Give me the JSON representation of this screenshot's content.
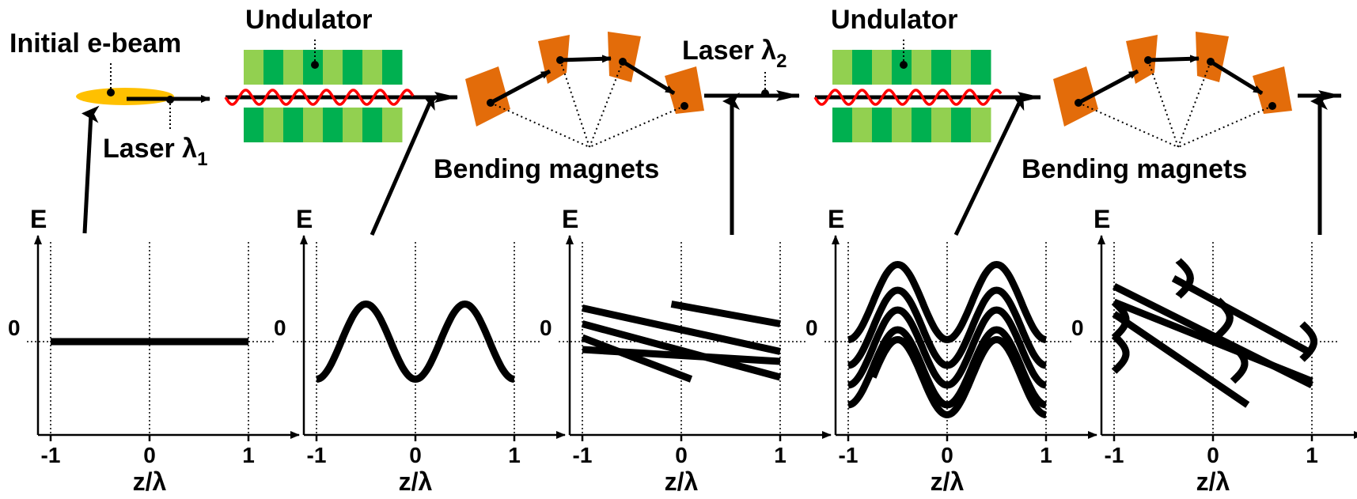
{
  "labels": {
    "initial_ebeam": "Initial e-beam",
    "undulator_1": "Undulator",
    "undulator_2": "Undulator",
    "laser_1": "Laser λ",
    "laser_1_sub": "1",
    "laser_2": "Laser λ",
    "laser_2_sub": "2",
    "bending_magnets_1": "Bending magnets",
    "bending_magnets_2": "Bending magnets"
  },
  "phase_plots": [
    {
      "id": "plot-1",
      "ylabel": "E",
      "xlabel": "z/λ",
      "zero_label": "0",
      "x_ticks": [
        "-1",
        "0",
        "1"
      ],
      "stage": "initial flat energy"
    },
    {
      "id": "plot-2",
      "ylabel": "E",
      "xlabel": "z/λ",
      "zero_label": "0",
      "x_ticks": [
        "-1",
        "0",
        "1"
      ],
      "stage": "sinusoidal energy modulation"
    },
    {
      "id": "plot-3",
      "ylabel": "E",
      "xlabel": "z/λ",
      "zero_label": "0",
      "x_ticks": [
        "-1",
        "0",
        "1"
      ],
      "stage": "sheared striations"
    },
    {
      "id": "plot-4",
      "ylabel": "E",
      "xlabel": "z/λ",
      "zero_label": "0",
      "x_ticks": [
        "-1",
        "0",
        "1"
      ],
      "stage": "modulated striations"
    },
    {
      "id": "plot-5",
      "ylabel": "E",
      "xlabel": "z/λ",
      "zero_label": "0",
      "x_ticks": [
        "-1",
        "0",
        "1"
      ],
      "stage": "sheared modulated striations"
    }
  ],
  "colors": {
    "undulator_dark": "#00b050",
    "undulator_light": "#92d050",
    "magnet": "#e36c0a",
    "ebeam": "#ffc000",
    "laser_wave": "#ff0000",
    "ink": "#000000"
  }
}
